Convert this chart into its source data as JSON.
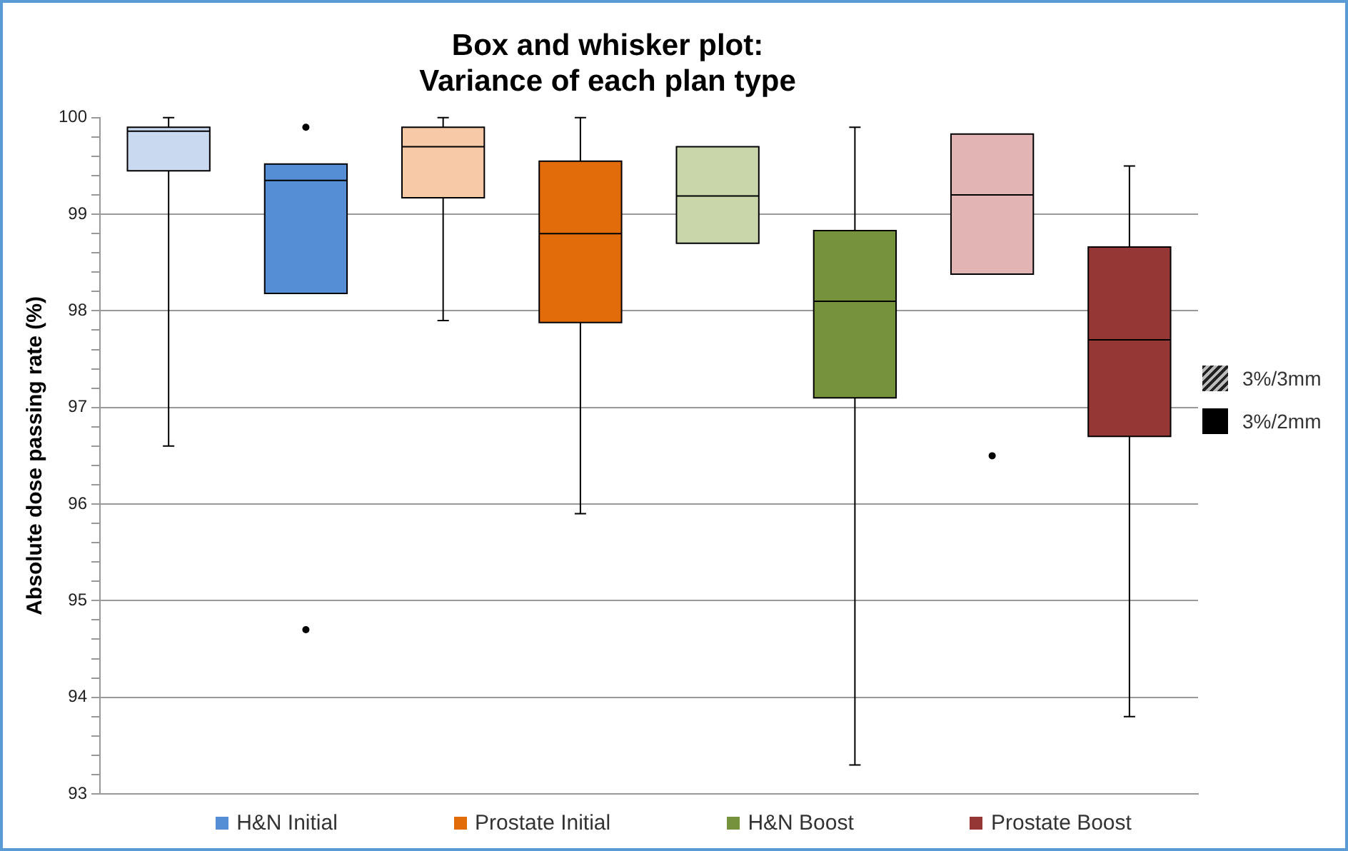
{
  "chart_data": {
    "type": "box",
    "title": "Box and whisker plot:\nVariance of each plan type",
    "ylabel": "Absolute dose passing rate (%)",
    "categories": [
      null,
      null,
      null,
      null,
      null,
      null,
      null,
      null
    ],
    "series": [
      {
        "name": "H&N Initial",
        "color": "#558ed5",
        "colors": [
          "#c9d9f0",
          "#558ed5",
          null,
          null,
          null,
          null,
          null,
          null
        ],
        "boxes": [
          {
            "low": 96.6,
            "q1": 99.45,
            "median": 99.86,
            "q3": 99.9,
            "high": 100
          },
          {
            "low": 98.18,
            "q1": 98.18,
            "median": 99.35,
            "q3": 99.52,
            "high": 99.52,
            "outliers": [
              99.9,
              94.7
            ]
          },
          null,
          null,
          null,
          null,
          null,
          null
        ]
      },
      {
        "name": "Prostate Initial",
        "color": "#e36c0a",
        "colors": [
          null,
          null,
          "#f8c9a6",
          "#e36c0a",
          null,
          null,
          null,
          null
        ],
        "boxes": [
          null,
          null,
          {
            "low": 97.9,
            "q1": 99.17,
            "median": 99.7,
            "q3": 99.9,
            "high": 100
          },
          {
            "low": 95.9,
            "q1": 97.88,
            "median": 98.8,
            "q3": 99.55,
            "high": 100
          },
          null,
          null,
          null,
          null
        ]
      },
      {
        "name": "H&N Boost",
        "color": "#76923c",
        "colors": [
          null,
          null,
          null,
          null,
          "#c8d6a9",
          "#76923c",
          null,
          null
        ],
        "boxes": [
          null,
          null,
          null,
          null,
          {
            "low": 98.7,
            "q1": 98.7,
            "median": 99.19,
            "q3": 99.7,
            "high": 99.7
          },
          {
            "low": 93.3,
            "q1": 97.1,
            "median": 98.1,
            "q3": 98.83,
            "high": 99.9
          },
          null,
          null
        ]
      },
      {
        "name": "Prostate Boost",
        "color": "#953735",
        "colors": [
          null,
          null,
          null,
          null,
          null,
          null,
          "#e2b4b3",
          "#953735"
        ],
        "boxes": [
          null,
          null,
          null,
          null,
          null,
          null,
          {
            "low": 98.38,
            "q1": 98.38,
            "median": 99.2,
            "q3": 99.83,
            "high": 99.83,
            "outliers": [
              96.5
            ]
          },
          {
            "low": 93.8,
            "q1": 96.7,
            "median": 97.7,
            "q3": 98.66,
            "high": 99.5
          }
        ]
      }
    ],
    "annotations": [
      "3%/3mm",
      "3%/2mm"
    ],
    "ylim": [
      93,
      100
    ],
    "yticks": [
      93,
      {
        "value": 93.2,
        "label": null
      },
      {
        "value": 93.4,
        "label": null
      },
      {
        "value": 93.6,
        "label": null
      },
      {
        "value": 93.8,
        "label": null
      },
      94,
      {
        "value": 94.2,
        "label": null
      },
      {
        "value": 94.4,
        "label": null
      },
      {
        "value": 94.6,
        "label": null
      },
      {
        "value": 94.8,
        "label": null
      },
      95,
      {
        "value": 95.2,
        "label": null
      },
      {
        "value": 95.4,
        "label": null
      },
      {
        "value": 95.6,
        "label": null
      },
      {
        "value": 95.8,
        "label": null
      },
      96,
      {
        "value": 96.2,
        "label": null
      },
      {
        "value": 96.4,
        "label": null
      },
      {
        "value": 96.6,
        "label": null
      },
      {
        "value": 96.8,
        "label": null
      },
      97,
      {
        "value": 97.2,
        "label": null
      },
      {
        "value": 97.4,
        "label": null
      },
      {
        "value": 97.6,
        "label": null
      },
      {
        "value": 97.8,
        "label": null
      },
      98,
      {
        "value": 98.2,
        "label": null
      },
      {
        "value": 98.4,
        "label": null
      },
      {
        "value": 98.6,
        "label": null
      },
      {
        "value": 98.8,
        "label": null
      },
      99,
      {
        "value": 99.2,
        "label": null
      },
      {
        "value": 99.4,
        "label": null
      },
      {
        "value": 99.6,
        "label": null
      },
      {
        "value": 99.8,
        "label": null
      },
      100
    ],
    "grid": "y",
    "legend": "bottom",
    "tick_labels": "y"
  }
}
